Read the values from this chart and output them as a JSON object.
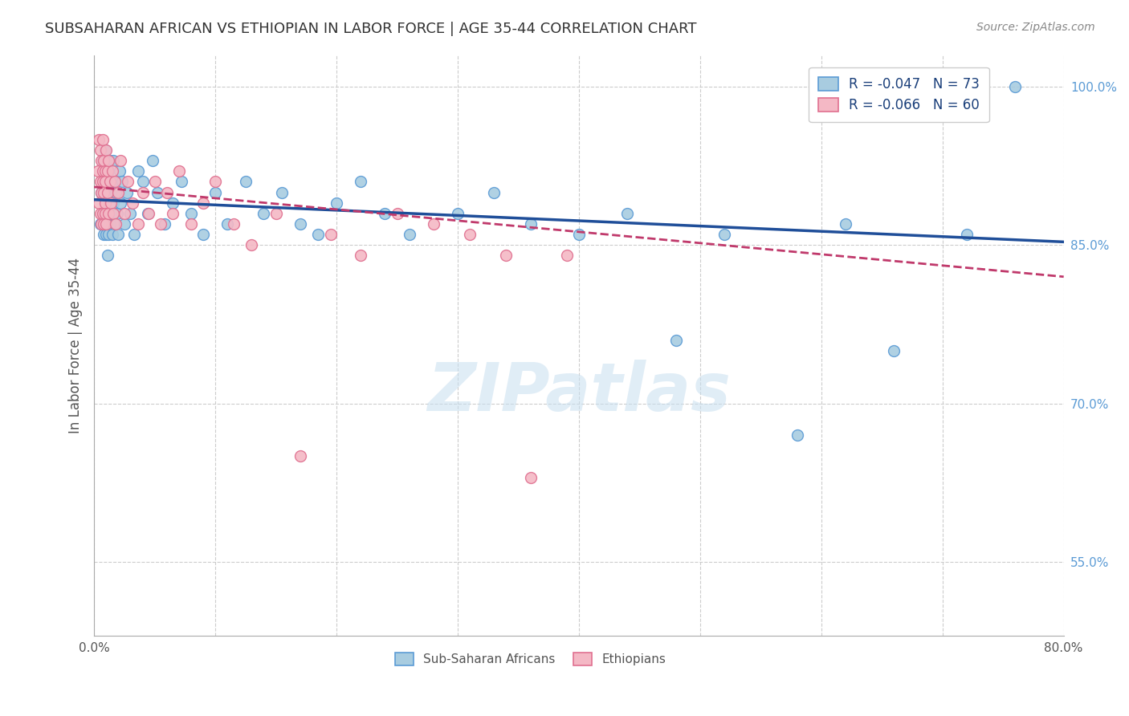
{
  "title": "SUBSAHARAN AFRICAN VS ETHIOPIAN IN LABOR FORCE | AGE 35-44 CORRELATION CHART",
  "source": "Source: ZipAtlas.com",
  "ylabel_left": "In Labor Force | Age 35-44",
  "xlim": [
    0.0,
    0.8
  ],
  "ylim": [
    0.48,
    1.03
  ],
  "xticks": [
    0.0,
    0.1,
    0.2,
    0.3,
    0.4,
    0.5,
    0.6,
    0.7,
    0.8
  ],
  "yticks_right": [
    0.55,
    0.7,
    0.85,
    1.0
  ],
  "yticklabels_right": [
    "55.0%",
    "70.0%",
    "85.0%",
    "100.0%"
  ],
  "blue_color": "#a8cce0",
  "blue_edge_color": "#5b9bd5",
  "pink_color": "#f4b8c5",
  "pink_edge_color": "#e07090",
  "legend_blue_label": "R = -0.047   N = 73",
  "legend_pink_label": "R = -0.066   N = 60",
  "legend_sub_label": "Sub-Saharan Africans",
  "legend_eth_label": "Ethiopians",
  "watermark": "ZIPatlas",
  "background_color": "#ffffff",
  "grid_color": "#cccccc",
  "title_color": "#333333",
  "axis_label_color": "#555555",
  "right_tick_color": "#5b9bd5",
  "blue_trend_color": "#1f4e99",
  "pink_trend_color": "#c0396b",
  "blue_scatter_x": [
    0.005,
    0.006,
    0.007,
    0.007,
    0.008,
    0.008,
    0.008,
    0.009,
    0.009,
    0.009,
    0.01,
    0.01,
    0.01,
    0.01,
    0.011,
    0.011,
    0.011,
    0.012,
    0.012,
    0.012,
    0.013,
    0.013,
    0.013,
    0.014,
    0.014,
    0.015,
    0.015,
    0.016,
    0.016,
    0.017,
    0.018,
    0.019,
    0.02,
    0.021,
    0.022,
    0.023,
    0.025,
    0.027,
    0.03,
    0.033,
    0.036,
    0.04,
    0.044,
    0.048,
    0.052,
    0.058,
    0.065,
    0.072,
    0.08,
    0.09,
    0.1,
    0.11,
    0.125,
    0.14,
    0.155,
    0.17,
    0.185,
    0.2,
    0.22,
    0.24,
    0.26,
    0.3,
    0.33,
    0.36,
    0.4,
    0.44,
    0.48,
    0.52,
    0.58,
    0.62,
    0.66,
    0.72,
    0.76
  ],
  "blue_scatter_y": [
    0.87,
    0.9,
    0.93,
    0.88,
    0.91,
    0.86,
    0.92,
    0.89,
    0.94,
    0.87,
    0.86,
    0.91,
    0.88,
    0.93,
    0.9,
    0.87,
    0.84,
    0.92,
    0.88,
    0.86,
    0.91,
    0.87,
    0.93,
    0.9,
    0.88,
    0.86,
    0.91,
    0.89,
    0.93,
    0.87,
    0.9,
    0.88,
    0.86,
    0.92,
    0.89,
    0.91,
    0.87,
    0.9,
    0.88,
    0.86,
    0.92,
    0.91,
    0.88,
    0.93,
    0.9,
    0.87,
    0.89,
    0.91,
    0.88,
    0.86,
    0.9,
    0.87,
    0.91,
    0.88,
    0.9,
    0.87,
    0.86,
    0.89,
    0.91,
    0.88,
    0.86,
    0.88,
    0.9,
    0.87,
    0.86,
    0.88,
    0.76,
    0.86,
    0.67,
    0.87,
    0.75,
    0.86,
    1.0
  ],
  "pink_scatter_x": [
    0.003,
    0.004,
    0.004,
    0.005,
    0.005,
    0.005,
    0.006,
    0.006,
    0.006,
    0.007,
    0.007,
    0.007,
    0.007,
    0.008,
    0.008,
    0.008,
    0.009,
    0.009,
    0.009,
    0.009,
    0.01,
    0.01,
    0.011,
    0.011,
    0.012,
    0.012,
    0.013,
    0.014,
    0.015,
    0.016,
    0.017,
    0.018,
    0.02,
    0.022,
    0.025,
    0.028,
    0.032,
    0.036,
    0.04,
    0.045,
    0.05,
    0.055,
    0.06,
    0.065,
    0.07,
    0.08,
    0.09,
    0.1,
    0.115,
    0.13,
    0.15,
    0.17,
    0.195,
    0.22,
    0.25,
    0.28,
    0.31,
    0.34,
    0.36,
    0.39
  ],
  "pink_scatter_y": [
    0.92,
    0.95,
    0.89,
    0.94,
    0.88,
    0.91,
    0.93,
    0.87,
    0.9,
    0.92,
    0.88,
    0.91,
    0.95,
    0.9,
    0.87,
    0.93,
    0.89,
    0.92,
    0.88,
    0.91,
    0.94,
    0.87,
    0.92,
    0.9,
    0.88,
    0.93,
    0.91,
    0.89,
    0.92,
    0.88,
    0.91,
    0.87,
    0.9,
    0.93,
    0.88,
    0.91,
    0.89,
    0.87,
    0.9,
    0.88,
    0.91,
    0.87,
    0.9,
    0.88,
    0.92,
    0.87,
    0.89,
    0.91,
    0.87,
    0.85,
    0.88,
    0.65,
    0.86,
    0.84,
    0.88,
    0.87,
    0.86,
    0.84,
    0.63,
    0.84
  ],
  "blue_trend_x": [
    0.0,
    0.8
  ],
  "blue_trend_y": [
    0.893,
    0.853
  ],
  "pink_trend_x": [
    0.0,
    0.8
  ],
  "pink_trend_y": [
    0.905,
    0.82
  ],
  "marker_size": 100,
  "marker_linewidth": 1.0
}
